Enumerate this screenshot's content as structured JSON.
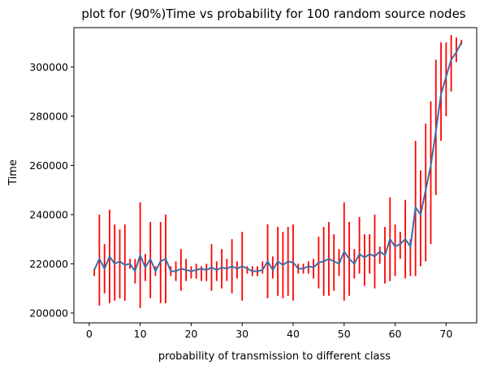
{
  "chart_data": {
    "type": "line",
    "title": "plot for (90%)Time vs probability for 100 random source nodes",
    "xlabel": "probability of transmission to different class",
    "ylabel": "Time",
    "xlim": [
      -3,
      76
    ],
    "ylim": [
      196000,
      316000
    ],
    "xticks": [
      0,
      10,
      20,
      30,
      40,
      50,
      60,
      70
    ],
    "yticks": [
      200000,
      220000,
      240000,
      260000,
      280000,
      300000
    ],
    "ytick_labels": [
      "200000",
      "220000",
      "240000",
      "260000",
      "280000",
      "300000"
    ],
    "grid": false,
    "line_color": "#3b6fa7",
    "errorbar_color": "#ff0000",
    "series": [
      {
        "x": [
          1,
          2,
          3,
          4,
          5,
          6,
          7,
          8,
          9,
          10,
          11,
          12,
          13,
          14,
          15,
          16,
          17,
          18,
          19,
          20,
          21,
          22,
          23,
          24,
          25,
          26,
          27,
          28,
          29,
          30,
          31,
          32,
          33,
          34,
          35,
          36,
          37,
          38,
          39,
          40,
          41,
          42,
          43,
          44,
          45,
          46,
          47,
          48,
          49,
          50,
          51,
          52,
          53,
          54,
          55,
          56,
          57,
          58,
          59,
          60,
          61,
          62,
          63,
          64,
          65,
          66,
          67,
          68,
          69,
          70,
          71,
          72,
          73
        ],
        "y": [
          217500,
          222000,
          218000,
          223000,
          220000,
          221000,
          219500,
          220000,
          217000,
          223500,
          218500,
          222000,
          217000,
          221000,
          222000,
          217000,
          217000,
          218000,
          217500,
          217000,
          217500,
          218000,
          217500,
          218500,
          217500,
          218500,
          218000,
          219000,
          218000,
          219000,
          218000,
          217000,
          217000,
          217500,
          221000,
          217500,
          221000,
          219500,
          221000,
          220500,
          218000,
          218000,
          219000,
          218500,
          220500,
          221000,
          222000,
          221000,
          220000,
          225000,
          222000,
          220000,
          224000,
          222500,
          224000,
          223000,
          225000,
          223500,
          230000,
          227000,
          228000,
          230000,
          227000,
          243000,
          240000,
          250000,
          260000,
          274000,
          289000,
          296000,
          303000,
          306000,
          310000
        ],
        "err_low": [
          215000,
          203000,
          208000,
          204000,
          205000,
          206000,
          205000,
          218000,
          212000,
          202000,
          213000,
          206000,
          215000,
          204000,
          204000,
          215000,
          213000,
          209000,
          213000,
          214000,
          214000,
          213000,
          213000,
          209000,
          213000,
          210000,
          213000,
          208000,
          214000,
          205000,
          216000,
          215000,
          215000,
          216000,
          206000,
          214000,
          207000,
          206000,
          207000,
          205000,
          216000,
          216000,
          216000,
          214000,
          210000,
          207000,
          207000,
          209000,
          215000,
          205000,
          207000,
          214000,
          216000,
          211000,
          216000,
          210000,
          220000,
          212000,
          213000,
          215000,
          222000,
          214000,
          215000,
          215000,
          219000,
          221000,
          228000,
          248000,
          270000,
          280000,
          290000,
          302000,
          309000
        ],
        "err_high": [
          218000,
          240000,
          228000,
          242000,
          236000,
          234000,
          236000,
          222000,
          222000,
          245000,
          224000,
          237000,
          219000,
          237000,
          240000,
          219000,
          221000,
          226000,
          222000,
          219000,
          220000,
          219000,
          220000,
          228000,
          221000,
          226000,
          222000,
          230000,
          221000,
          233000,
          219000,
          219000,
          219000,
          221000,
          236000,
          223000,
          235000,
          233000,
          235000,
          236000,
          220000,
          220000,
          221000,
          222000,
          231000,
          235000,
          237000,
          232000,
          226000,
          245000,
          237000,
          226000,
          239000,
          232000,
          232000,
          240000,
          227000,
          235000,
          247000,
          236000,
          233000,
          246000,
          230000,
          270000,
          258000,
          277000,
          286000,
          303000,
          310000,
          310000,
          313000,
          312000,
          311000
        ]
      }
    ]
  }
}
